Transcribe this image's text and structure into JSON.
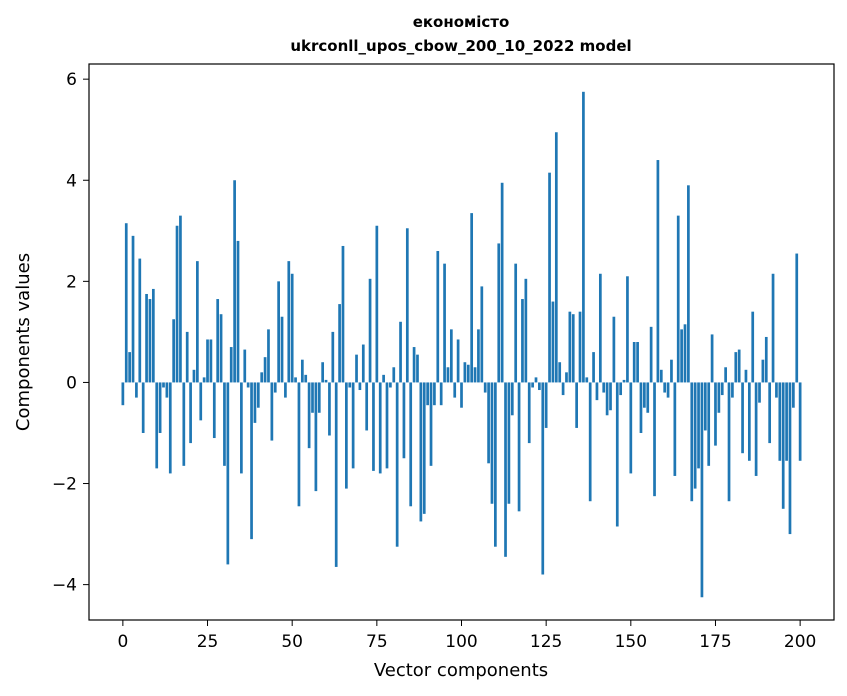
{
  "chart_data": {
    "type": "bar",
    "title": "економісто",
    "subtitle": "ukrconll_upos_cbow_200_10_2022 model",
    "xlabel": "Vector components",
    "ylabel": "Components values",
    "xlim": [
      -10,
      210
    ],
    "ylim": [
      -4.7,
      6.3
    ],
    "xticks": [
      0,
      25,
      50,
      75,
      100,
      125,
      150,
      175,
      200
    ],
    "yticks": [
      -4,
      -2,
      0,
      2,
      4,
      6
    ],
    "ytick_labels": [
      "−4",
      "−2",
      "0",
      "2",
      "4",
      "6"
    ],
    "grid": false,
    "color": "#1f77b4",
    "values": [
      -0.45,
      3.15,
      0.6,
      2.9,
      -0.3,
      2.45,
      -1.0,
      1.75,
      1.65,
      1.85,
      -1.7,
      -1.0,
      -0.1,
      -0.3,
      -1.8,
      1.25,
      3.1,
      3.3,
      -1.65,
      1.0,
      -1.2,
      0.25,
      2.4,
      -0.75,
      0.1,
      0.85,
      0.85,
      -1.1,
      1.65,
      1.35,
      -1.65,
      -3.6,
      0.7,
      4.0,
      2.8,
      -1.8,
      0.65,
      -0.1,
      -3.1,
      -0.8,
      -0.5,
      0.2,
      0.5,
      1.05,
      -1.15,
      -0.2,
      2.0,
      1.3,
      -0.3,
      2.4,
      2.15,
      0.1,
      -2.45,
      0.45,
      0.15,
      -1.3,
      -0.6,
      -2.15,
      -0.6,
      0.4,
      0.05,
      -1.05,
      1.0,
      -3.65,
      1.55,
      2.7,
      -2.1,
      -0.1,
      -1.7,
      0.55,
      -0.15,
      0.75,
      -0.95,
      2.05,
      -1.75,
      3.1,
      -1.8,
      0.15,
      -1.7,
      -0.1,
      0.3,
      -3.25,
      1.2,
      -1.5,
      3.05,
      -2.45,
      0.7,
      0.55,
      -2.75,
      -2.6,
      -0.45,
      -1.65,
      -0.45,
      2.6,
      -0.45,
      2.35,
      0.3,
      1.05,
      -0.3,
      0.85,
      -0.5,
      0.4,
      0.35,
      3.35,
      0.3,
      1.05,
      1.9,
      -0.2,
      -1.6,
      -2.4,
      -3.25,
      2.75,
      3.95,
      -3.45,
      -2.4,
      -0.65,
      2.35,
      -2.55,
      1.65,
      2.05,
      -1.2,
      -0.1,
      0.1,
      -0.15,
      -3.8,
      -0.9,
      4.15,
      1.6,
      4.95,
      0.4,
      -0.25,
      0.2,
      1.4,
      1.35,
      -0.9,
      1.4,
      5.75,
      0.1,
      -2.35,
      0.6,
      -0.35,
      2.15,
      -0.2,
      -0.65,
      -0.55,
      1.3,
      -2.85,
      -0.25,
      0.05,
      2.1,
      -1.8,
      0.8,
      0.8,
      -1.0,
      -0.5,
      -0.6,
      1.1,
      -2.25,
      4.4,
      0.25,
      -0.2,
      -0.3,
      0.45,
      -1.85,
      3.3,
      1.05,
      1.15,
      3.9,
      -2.35,
      -2.1,
      -1.7,
      -4.25,
      -0.95,
      -1.65,
      0.95,
      -1.25,
      -0.6,
      -0.25,
      0.3,
      -2.35,
      -0.3,
      0.6,
      0.65,
      -1.4,
      0.25,
      -1.55,
      1.4,
      -1.85,
      -0.4,
      0.45,
      0.9,
      -1.2,
      2.15,
      -0.3,
      -1.55,
      -2.5,
      -1.55,
      -3.0,
      -0.5,
      2.55,
      -1.55
    ]
  }
}
